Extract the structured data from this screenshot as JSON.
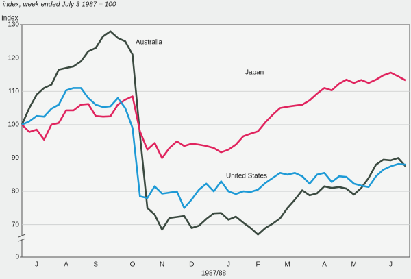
{
  "chart_data": {
    "type": "line",
    "title": "index, week ended July 3 1987 = 100",
    "y_label": "Index",
    "x_label": "1987/88",
    "categories": [
      null,
      null,
      "J",
      null,
      null,
      null,
      "A",
      null,
      null,
      null,
      "S",
      null,
      null,
      null,
      null,
      "O",
      null,
      null,
      null,
      "N",
      null,
      null,
      null,
      "D",
      null,
      null,
      null,
      null,
      "J",
      null,
      null,
      null,
      "F",
      null,
      null,
      null,
      "M",
      null,
      null,
      null,
      null,
      "A",
      null,
      null,
      null,
      "M",
      null,
      null,
      null,
      null,
      "J",
      null,
      null
    ],
    "series": [
      {
        "name": "Australia",
        "color": "#3b4a40",
        "values": [
          100,
          105,
          109,
          111,
          112,
          116.5,
          117,
          117.5,
          119,
          122,
          123,
          126.5,
          128,
          126,
          125,
          121,
          97,
          75,
          73,
          68.5,
          72,
          72.3,
          72.6,
          69,
          69.7,
          71.7,
          73.4,
          73.5,
          71.5,
          72.4,
          70.6,
          69,
          67,
          69,
          70.3,
          71.9,
          75,
          77.5,
          80.3,
          78.8,
          79.4,
          81.5,
          81,
          81.3,
          80.8,
          79,
          81,
          84,
          88,
          89.5,
          89.3,
          90,
          87.5
        ]
      },
      {
        "name": "Japan",
        "color": "#e0245e",
        "values": [
          100,
          97.8,
          98.5,
          95.5,
          100,
          100.5,
          104.3,
          104.3,
          106,
          106.2,
          102.6,
          102.4,
          102.5,
          106,
          107.5,
          108.5,
          98,
          92.5,
          94.5,
          90,
          93,
          95,
          93.6,
          94.3,
          94,
          93.6,
          93,
          91.7,
          92.5,
          94,
          96.5,
          97.3,
          98,
          100.7,
          103,
          105,
          105.4,
          105.7,
          106,
          107.3,
          109.3,
          111,
          110.3,
          112.3,
          113.5,
          112.5,
          113.4,
          112.5,
          113.5,
          114.8,
          115.6,
          114.5,
          113.3
        ]
      },
      {
        "name": "United States",
        "color": "#1e9ad6",
        "values": [
          100,
          101,
          102.6,
          102.4,
          104.8,
          106,
          110.3,
          111,
          111,
          108,
          106,
          105.3,
          105.5,
          108,
          105,
          99,
          78.5,
          78,
          81.5,
          79.3,
          79.6,
          80,
          75,
          77.5,
          80.5,
          82.3,
          80,
          83,
          80,
          79.2,
          80,
          79.8,
          80.5,
          82.5,
          84,
          85.5,
          85,
          85.5,
          84.5,
          82.3,
          85,
          85.5,
          82.8,
          84.5,
          84.3,
          82.3,
          81.7,
          81.3,
          84.5,
          86.5,
          87.5,
          88.2,
          88
        ]
      }
    ],
    "ylim": [
      0,
      130
    ],
    "y_break": [
      0,
      65
    ],
    "yticks": [
      0,
      70,
      80,
      90,
      100,
      110,
      120,
      130
    ],
    "grid": true
  }
}
